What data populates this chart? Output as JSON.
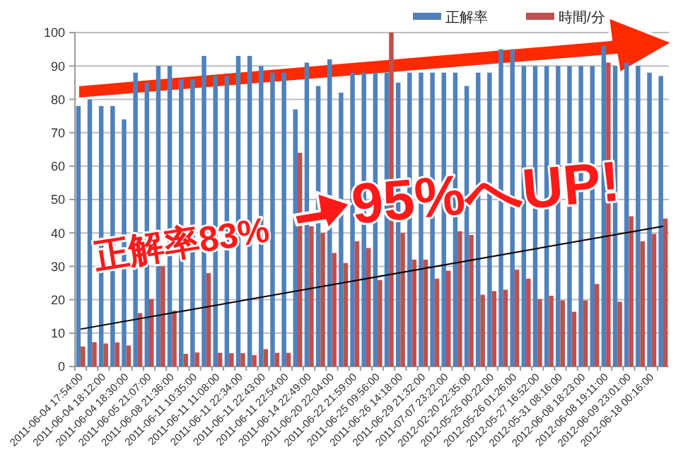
{
  "chart_data": {
    "type": "bar",
    "categories": [
      "2011-06-04 17:54:00",
      null,
      "2011-06-04 18:12:00",
      null,
      "2011-06-04 18:30:00",
      null,
      "2011-06-05 21:07:00",
      null,
      "2011-06-08 21:36:00",
      null,
      "2011-06-11 10:35:00",
      null,
      "2011-06-11 11:08:00",
      null,
      "2011-06-11 22:34:00",
      null,
      "2011-06-11 22:43:00",
      null,
      "2011-06-11 22:54:00",
      null,
      "2011-06-14 22:49:00",
      null,
      "2011-06-20 22:04:00",
      null,
      "2011-06-22 21:59:00",
      null,
      "2011-06-25 09:56:00",
      null,
      "2011-06-26 14:18:00",
      null,
      "2011-06-29 21:32:00",
      null,
      "2011-07-07 23:22:00",
      null,
      "2012-02-20 22:35:00",
      null,
      "2012-05-25 00:22:00",
      null,
      "2012-05-26 01:26:00",
      null,
      "2012-05-27 16:52:00",
      null,
      "2012-05-31 08:16:00",
      null,
      "2012-06-08 18:23:00",
      null,
      "2012-06-08 19:11:00",
      null,
      "2012-06-09 23:01:00",
      null,
      "2012-06-18 00:16:00",
      null
    ],
    "series": [
      {
        "name": "正解率",
        "color": "#4f81bd",
        "values": [
          78,
          80,
          78,
          78,
          74,
          88,
          85,
          90,
          90,
          86,
          86,
          93,
          87,
          87,
          93,
          93,
          90,
          88,
          88,
          77,
          91,
          84,
          92,
          82,
          88,
          88,
          88,
          88,
          85,
          88,
          88,
          88,
          88,
          88,
          84,
          88,
          88,
          95,
          95,
          90,
          90,
          90,
          90,
          90,
          90,
          90,
          96,
          90,
          91,
          90,
          88,
          87
        ]
      },
      {
        "name": "時間/分",
        "color": "#c0504d",
        "values": [
          6,
          7.3,
          6.9,
          7.2,
          6.3,
          16,
          20.2,
          30,
          16.7,
          3.8,
          4.2,
          28,
          4.1,
          4,
          4,
          3.4,
          5.2,
          4.1,
          4.1,
          64,
          42,
          40,
          34,
          31,
          37.5,
          35.5,
          25.9,
          100,
          40,
          32,
          32,
          26.3,
          28.7,
          40.5,
          39.4,
          21.5,
          22.6,
          23,
          29,
          26.3,
          20.2,
          21.2,
          19.8,
          16.4,
          19.8,
          24.7,
          91,
          19.4,
          45,
          37.5,
          39.7,
          44.3
        ]
      },
      {
        "type": "line",
        "color": "#000000",
        "values": [
          11.2,
          null,
          null,
          null,
          null,
          null,
          null,
          null,
          null,
          null,
          null,
          null,
          null,
          null,
          null,
          null,
          null,
          null,
          null,
          null,
          null,
          null,
          null,
          null,
          null,
          null,
          null,
          null,
          null,
          null,
          null,
          null,
          null,
          null,
          null,
          null,
          null,
          null,
          null,
          null,
          null,
          null,
          null,
          null,
          null,
          null,
          null,
          null,
          null,
          null,
          null,
          42
        ]
      }
    ],
    "ylim": [
      0,
      100
    ],
    "yticks": [
      0,
      10,
      20,
      30,
      40,
      50,
      60,
      70,
      80,
      90,
      100
    ],
    "grid": "y",
    "legend": "top right",
    "annotations": [
      "正解率83%",
      "95%へUP!"
    ]
  }
}
